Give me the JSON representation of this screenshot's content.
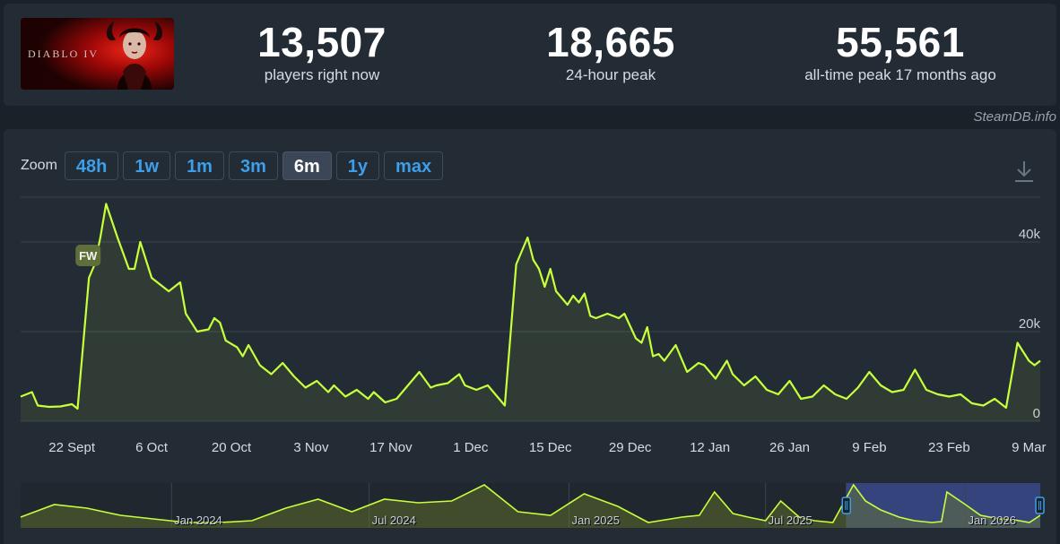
{
  "header": {
    "game_title_art": "DIABLO IV",
    "stats": [
      {
        "value": "13,507",
        "label": "players right now"
      },
      {
        "value": "18,665",
        "label": "24-hour peak"
      },
      {
        "value": "55,561",
        "label": "all-time peak 17 months ago"
      }
    ]
  },
  "attribution": "SteamDB.info",
  "zoom": {
    "label": "Zoom",
    "options": [
      "48h",
      "1w",
      "1m",
      "3m",
      "6m",
      "1y",
      "max"
    ],
    "selected": "6m"
  },
  "colors": {
    "line": "#c6ff3c",
    "grid": "#39424e",
    "accent": "#3d9fea",
    "navigator_selection": "#3b4a8c"
  },
  "chart_data": [
    {
      "type": "line",
      "title": "",
      "ylabel": "",
      "ylim": [
        0,
        50000
      ],
      "y_ticks": [
        "0",
        "20k",
        "40k"
      ],
      "x_tick_labels": [
        "22 Sept",
        "6 Oct",
        "20 Oct",
        "3 Nov",
        "17 Nov",
        "1 Dec",
        "15 Dec",
        "29 Dec",
        "12 Jan",
        "26 Jan",
        "9 Feb",
        "23 Feb",
        "9 Mar"
      ],
      "x_start": "2025-09-13",
      "annotations": [
        {
          "label": "FW",
          "x": "2025-09-25"
        }
      ],
      "series": [
        {
          "name": "",
          "x": [
            "2025-09-13",
            "2025-09-15",
            "2025-09-16",
            "2025-09-18",
            "2025-09-20",
            "2025-09-22",
            "2025-09-23",
            "2025-09-25",
            "2025-09-26",
            "2025-09-27",
            "2025-09-28",
            "2025-09-30",
            "2025-10-02",
            "2025-10-03",
            "2025-10-04",
            "2025-10-06",
            "2025-10-07",
            "2025-10-09",
            "2025-10-11",
            "2025-10-12",
            "2025-10-13",
            "2025-10-14",
            "2025-10-16",
            "2025-10-17",
            "2025-10-18",
            "2025-10-19",
            "2025-10-21",
            "2025-10-22",
            "2025-10-23",
            "2025-10-25",
            "2025-10-27",
            "2025-10-29",
            "2025-10-31",
            "2025-11-02",
            "2025-11-04",
            "2025-11-06",
            "2025-11-07",
            "2025-11-09",
            "2025-11-11",
            "2025-11-13",
            "2025-11-14",
            "2025-11-16",
            "2025-11-18",
            "2025-11-20",
            "2025-11-22",
            "2025-11-24",
            "2025-11-25",
            "2025-11-27",
            "2025-11-29",
            "2025-11-30",
            "2025-12-02",
            "2025-12-04",
            "2025-12-06",
            "2025-12-07",
            "2025-12-09",
            "2025-12-11",
            "2025-12-12",
            "2025-12-13",
            "2025-12-14",
            "2025-12-15",
            "2025-12-16",
            "2025-12-18",
            "2025-12-19",
            "2025-12-20",
            "2025-12-21",
            "2025-12-22",
            "2025-12-23",
            "2025-12-25",
            "2025-12-27",
            "2025-12-28",
            "2025-12-30",
            "2025-12-31",
            "2026-01-01",
            "2026-01-02",
            "2026-01-03",
            "2026-01-04",
            "2026-01-06",
            "2026-01-07",
            "2026-01-08",
            "2026-01-10",
            "2026-01-11",
            "2026-01-13",
            "2026-01-15",
            "2026-01-16",
            "2026-01-18",
            "2026-01-20",
            "2026-01-22",
            "2026-01-24",
            "2026-01-26",
            "2026-01-28",
            "2026-01-30",
            "2026-02-01",
            "2026-02-03",
            "2026-02-05",
            "2026-02-07",
            "2026-02-09",
            "2026-02-11",
            "2026-02-13",
            "2026-02-15",
            "2026-02-17",
            "2026-02-19",
            "2026-02-21",
            "2026-02-23",
            "2026-02-25",
            "2026-02-27",
            "2026-03-01",
            "2026-03-03",
            "2026-03-05",
            "2026-03-07",
            "2026-03-09",
            "2026-03-10",
            "2026-03-11"
          ],
          "y": [
            5500,
            6500,
            3500,
            3200,
            3300,
            3800,
            2800,
            32000,
            35000,
            41000,
            48500,
            41000,
            34000,
            34000,
            40000,
            32000,
            31000,
            29000,
            31000,
            24000,
            22000,
            20000,
            20500,
            23000,
            22000,
            18000,
            16500,
            14500,
            17000,
            12500,
            10500,
            13000,
            10000,
            7500,
            9000,
            6500,
            8000,
            5500,
            7000,
            5000,
            6500,
            4200,
            5000,
            8000,
            11000,
            7500,
            8000,
            8500,
            10500,
            8000,
            7000,
            8000,
            5000,
            3500,
            35000,
            41000,
            36000,
            34000,
            30000,
            34000,
            29000,
            26000,
            28000,
            26500,
            28500,
            23500,
            23000,
            24000,
            23000,
            24000,
            18500,
            17500,
            21000,
            14500,
            15000,
            13500,
            17000,
            14000,
            11000,
            13000,
            12500,
            9500,
            13500,
            10500,
            8000,
            10000,
            7000,
            6000,
            9000,
            5000,
            5500,
            8000,
            6000,
            5000,
            7500,
            11000,
            8000,
            6500,
            7000,
            11500,
            7000,
            6000,
            5500,
            6000,
            4000,
            3500,
            5000,
            3000,
            17500,
            13500,
            12500,
            13500
          ]
        }
      ]
    },
    {
      "type": "area",
      "title": "",
      "x_tick_labels": [
        "Jan 2024",
        "Jul 2024",
        "Jan 2025",
        "Jul 2025",
        "Jan 2026"
      ],
      "selected_range": [
        "2025-09-13",
        "2026-03-11"
      ],
      "series": [
        {
          "name": "",
          "x": [
            "2023-08-15",
            "2023-09-15",
            "2023-10-15",
            "2023-11-15",
            "2023-12-15",
            "2024-01-15",
            "2024-02-15",
            "2024-03-15",
            "2024-04-15",
            "2024-05-15",
            "2024-06-15",
            "2024-07-15",
            "2024-08-15",
            "2024-09-15",
            "2024-10-15",
            "2024-11-15",
            "2024-12-15",
            "2025-01-15",
            "2025-02-15",
            "2025-03-15",
            "2025-04-15",
            "2025-05-01",
            "2025-05-15",
            "2025-06-01",
            "2025-06-15",
            "2025-07-01",
            "2025-07-15",
            "2025-08-01",
            "2025-08-15",
            "2025-09-01",
            "2025-09-20",
            "2025-10-01",
            "2025-10-15",
            "2025-11-01",
            "2025-11-15",
            "2025-12-01",
            "2025-12-10",
            "2025-12-15",
            "2026-01-01",
            "2026-01-15",
            "2026-02-01",
            "2026-02-15",
            "2026-03-01",
            "2026-03-11"
          ],
          "y": [
            12000,
            26000,
            22000,
            14000,
            10000,
            6000,
            6000,
            8000,
            22000,
            32000,
            18000,
            32000,
            28000,
            30000,
            48000,
            18000,
            14000,
            38000,
            24000,
            6000,
            12000,
            14000,
            40000,
            16000,
            12000,
            8000,
            30000,
            12000,
            8000,
            6000,
            48000,
            30000,
            20000,
            12000,
            8000,
            6000,
            7000,
            40000,
            26000,
            14000,
            10000,
            9000,
            6000,
            14000
          ]
        }
      ]
    }
  ]
}
